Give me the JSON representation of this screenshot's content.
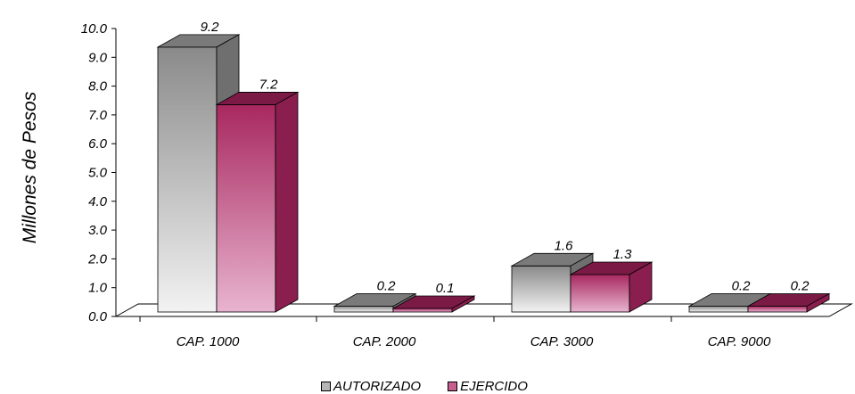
{
  "chart_data": {
    "type": "bar",
    "categories": [
      "CAP. 1000",
      "CAP. 2000",
      "CAP. 3000",
      "CAP. 9000"
    ],
    "series": [
      {
        "name": "AUTORIZADO",
        "values": [
          9.2,
          0.2,
          1.6,
          0.2
        ],
        "data_labels": [
          "9.2",
          "0.2",
          "1.6",
          "0.2"
        ]
      },
      {
        "name": "EJERCIDO",
        "values": [
          7.2,
          0.1,
          1.3,
          0.2
        ],
        "data_labels": [
          "7.2",
          "0.1",
          "1.3",
          "0.2"
        ]
      }
    ],
    "ylabel": "Millones de Pesos",
    "xlabel": "",
    "ylim": [
      0,
      10
    ],
    "yticks": [
      "0.0",
      "1.0",
      "2.0",
      "3.0",
      "4.0",
      "5.0",
      "6.0",
      "7.0",
      "8.0",
      "9.0",
      "10.0"
    ],
    "legend_position": "bottom",
    "grid": false,
    "three_d": true
  },
  "colors": {
    "autorizado_front_top": "#8a8a8a",
    "autorizado_front_bottom": "#f2f2f2",
    "autorizado_side": "#6f6f6f",
    "autorizado_top": "#7a7a7a",
    "ejercido_front_top": "#a8285f",
    "ejercido_front_bottom": "#e8b4d0",
    "ejercido_side": "#8a1f4f",
    "ejercido_top": "#7a1a45",
    "legend_autorizado": "#b5b5b5",
    "legend_ejercido": "#c8608f"
  }
}
